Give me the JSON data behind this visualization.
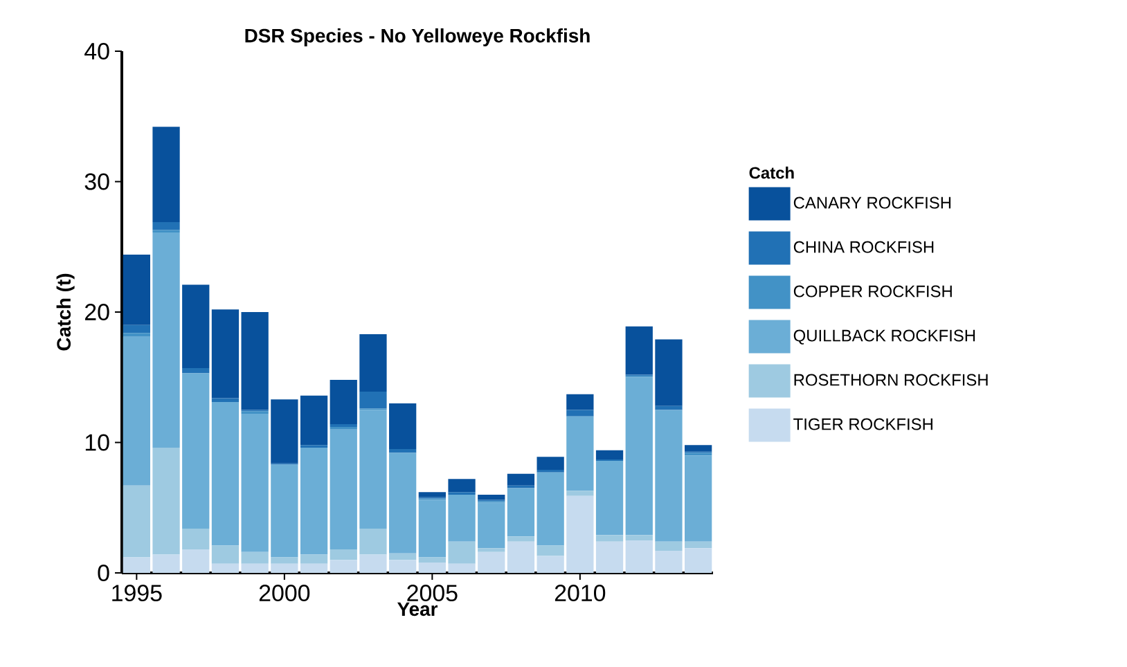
{
  "chart_data": {
    "type": "bar",
    "title": "DSR Species - No Yelloweye Rockfish",
    "xlabel": "Year",
    "ylabel": "Catch (t)",
    "legend_title": "Catch",
    "stacked": true,
    "legend": "right",
    "x": [
      1995,
      1996,
      1997,
      1998,
      1999,
      2000,
      2001,
      2002,
      2003,
      2004,
      2005,
      2006,
      2007,
      2008,
      2009,
      2010,
      2011,
      2012,
      2013,
      2014
    ],
    "xlim": [
      1994.5,
      2014.5
    ],
    "xticks": [
      1995,
      2000,
      2005,
      2010
    ],
    "ylim": [
      0,
      40
    ],
    "yticks": [
      0,
      10,
      20,
      30,
      40
    ],
    "series": [
      {
        "name": "TIGER ROCKFISH",
        "color": "#c6dbef",
        "values": [
          1.2,
          1.4,
          1.8,
          0.7,
          0.7,
          0.7,
          0.7,
          1.0,
          1.4,
          1.0,
          0.8,
          0.7,
          1.6,
          2.4,
          1.3,
          5.9,
          2.4,
          2.5,
          1.7,
          1.9
        ]
      },
      {
        "name": "ROSETHORN ROCKFISH",
        "color": "#9ecae1",
        "values": [
          5.5,
          8.2,
          1.6,
          1.4,
          0.9,
          0.5,
          0.7,
          0.8,
          2.0,
          0.5,
          0.4,
          1.7,
          0.3,
          0.4,
          0.8,
          0.4,
          0.5,
          0.4,
          0.7,
          0.5
        ]
      },
      {
        "name": "QUILLBACK ROCKFISH",
        "color": "#6baed6",
        "values": [
          11.4,
          16.5,
          11.9,
          11.0,
          10.6,
          7.1,
          8.2,
          9.2,
          9.1,
          7.7,
          4.4,
          3.6,
          3.5,
          3.7,
          5.6,
          5.7,
          5.7,
          12.1,
          10.1,
          6.6
        ]
      },
      {
        "name": "COPPER ROCKFISH",
        "color": "#4292c6",
        "values": [
          0.3,
          0.2,
          0,
          0,
          0.2,
          0,
          0,
          0.2,
          0.1,
          0,
          0.1,
          0,
          0.1,
          0,
          0,
          0,
          0,
          0.1,
          0,
          0.2
        ]
      },
      {
        "name": "CHINA ROCKFISH",
        "color": "#2171b5",
        "values": [
          0.6,
          0.6,
          0.4,
          0.3,
          0.1,
          0.1,
          0.2,
          0.2,
          1.3,
          0.3,
          0.1,
          0.2,
          0.1,
          0.2,
          0.2,
          0.5,
          0.1,
          0.1,
          0.3,
          0.1
        ]
      },
      {
        "name": "CANARY ROCKFISH",
        "color": "#08519c",
        "values": [
          5.4,
          7.3,
          6.4,
          6.8,
          7.5,
          4.9,
          3.8,
          3.4,
          4.4,
          3.5,
          0.4,
          1.0,
          0.4,
          0.9,
          1.0,
          1.2,
          0.7,
          3.7,
          5.1,
          0.5
        ]
      }
    ]
  }
}
